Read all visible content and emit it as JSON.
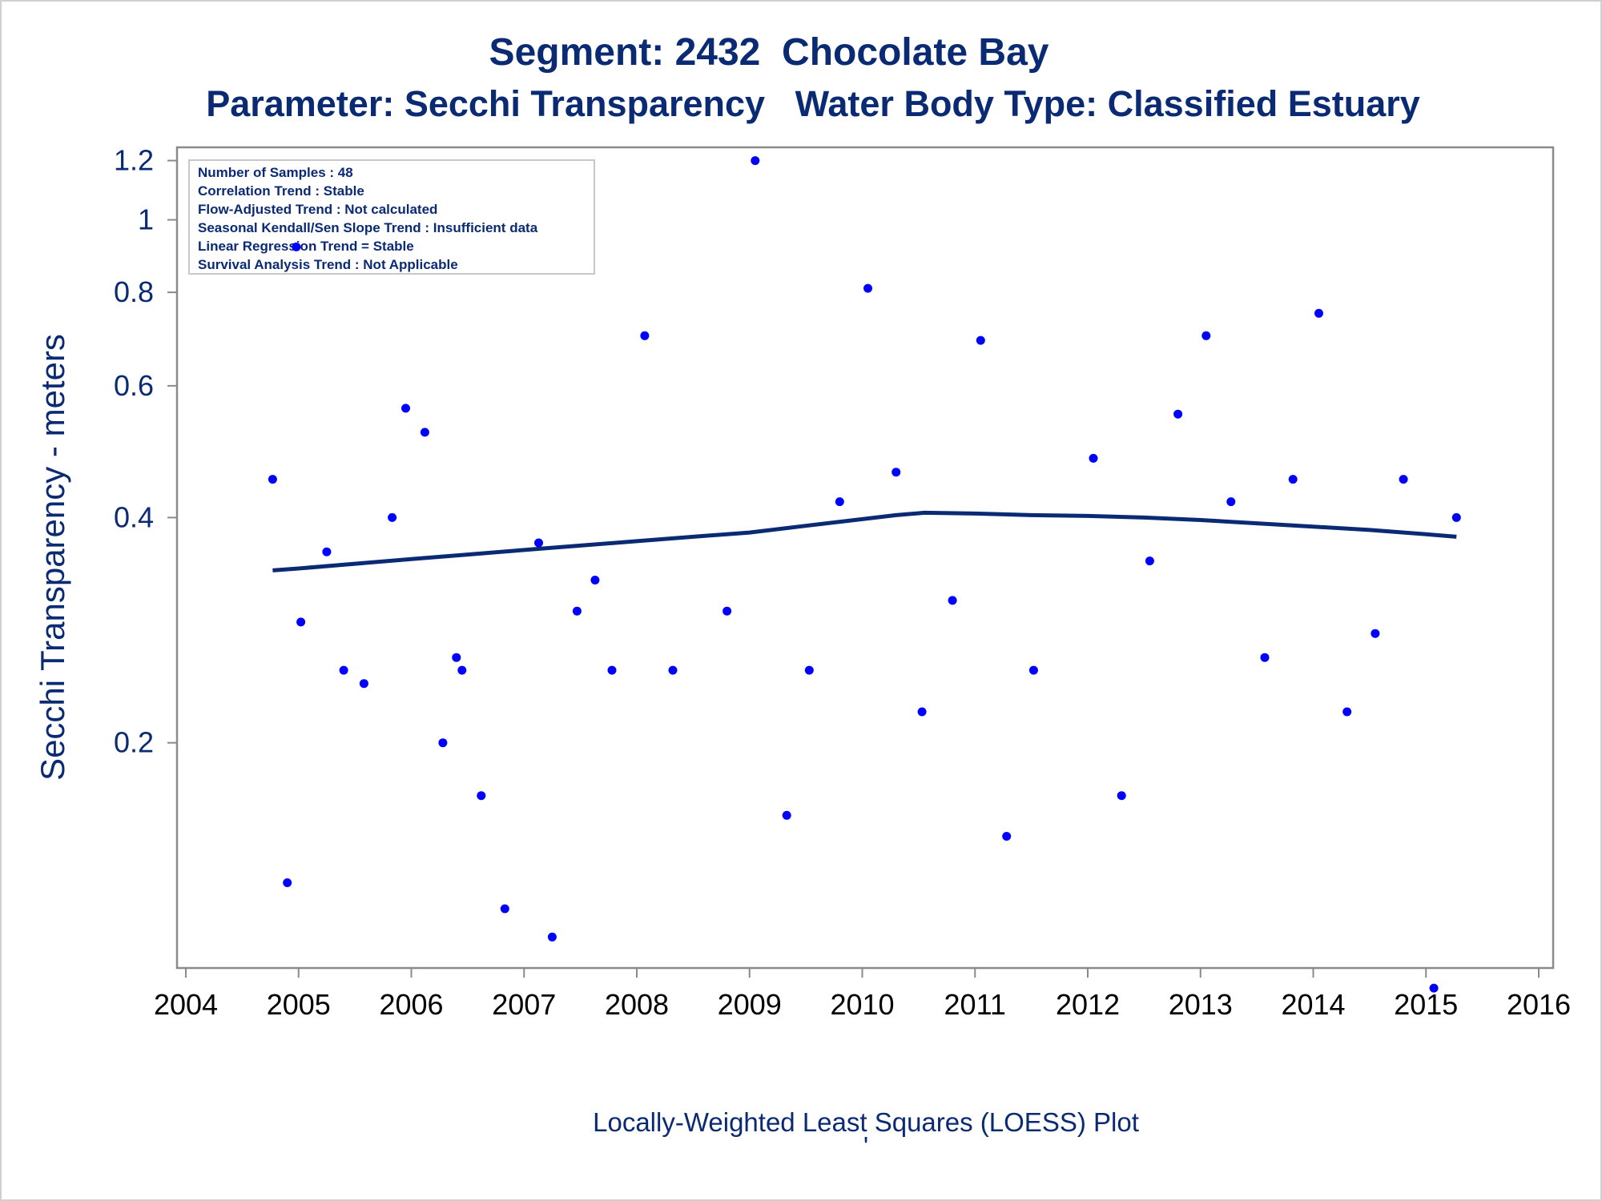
{
  "chart_data": {
    "type": "scatter",
    "title": "Segment: 2432  Chocolate Bay",
    "subtitle": "Parameter: Secchi Transparency   Water Body Type: Classified Estuary",
    "ylabel": "Secchi Transparency - meters",
    "xlabel": "",
    "footer": "Locally-Weighted Least Squares (LOESS) Plot",
    "yscale": "log",
    "xlim": [
      2004,
      2016
    ],
    "ylim": [
      0.1,
      1.25
    ],
    "x_ticks": [
      "2004",
      "2005",
      "2006",
      "2007",
      "2008",
      "2009",
      "2010",
      "2011",
      "2012",
      "2013",
      "2014",
      "2015",
      "2016"
    ],
    "y_ticks": [
      0.2,
      0.4,
      0.6,
      0.8,
      1,
      1.2
    ],
    "y_tick_labels": [
      "0.2",
      "0.4",
      "0.6",
      "0.8",
      "1",
      "1.2"
    ],
    "stats_box": [
      "Number of Samples : 48",
      "Correlation Trend : Stable",
      "Flow-Adjusted Trend : Not calculated",
      "Seasonal Kendall/Sen Slope Trend : Insufficient data",
      "Linear Regression Trend = Stable",
      "Survival Analysis Trend : Not Applicable"
    ],
    "grid": false,
    "series": [
      {
        "type": "scatter",
        "color": "#0000ff",
        "points": [
          [
            2004.77,
            0.45
          ],
          [
            2004.9,
            0.13
          ],
          [
            2004.98,
            0.92
          ],
          [
            2005.02,
            0.29
          ],
          [
            2005.25,
            0.36
          ],
          [
            2005.4,
            0.25
          ],
          [
            2005.58,
            0.24
          ],
          [
            2005.83,
            0.4
          ],
          [
            2005.95,
            0.56
          ],
          [
            2006.12,
            0.52
          ],
          [
            2006.28,
            0.2
          ],
          [
            2006.4,
            0.26
          ],
          [
            2006.45,
            0.25
          ],
          [
            2006.62,
            0.17
          ],
          [
            2006.83,
            0.12
          ],
          [
            2007.13,
            0.37
          ],
          [
            2007.25,
            0.11
          ],
          [
            2007.47,
            0.3
          ],
          [
            2007.63,
            0.33
          ],
          [
            2007.78,
            0.25
          ],
          [
            2008.07,
            0.7
          ],
          [
            2008.32,
            0.25
          ],
          [
            2008.8,
            0.3
          ],
          [
            2009.05,
            1.2
          ],
          [
            2009.33,
            0.16
          ],
          [
            2009.53,
            0.25
          ],
          [
            2009.8,
            0.42
          ],
          [
            2010.05,
            0.81
          ],
          [
            2010.3,
            0.46
          ],
          [
            2010.53,
            0.22
          ],
          [
            2010.8,
            0.31
          ],
          [
            2011.05,
            0.69
          ],
          [
            2011.28,
            0.15
          ],
          [
            2011.52,
            0.25
          ],
          [
            2012.05,
            0.48
          ],
          [
            2012.3,
            0.17
          ],
          [
            2012.55,
            0.35
          ],
          [
            2012.8,
            0.55
          ],
          [
            2013.05,
            0.7
          ],
          [
            2013.27,
            0.42
          ],
          [
            2013.57,
            0.26
          ],
          [
            2013.82,
            0.45
          ],
          [
            2014.05,
            0.75
          ],
          [
            2014.3,
            0.22
          ],
          [
            2014.55,
            0.28
          ],
          [
            2014.8,
            0.45
          ],
          [
            2015.07,
            0.094
          ],
          [
            2015.27,
            0.4
          ]
        ]
      },
      {
        "type": "line",
        "color": "#0b2a74",
        "points": [
          [
            2004.77,
            0.34
          ],
          [
            2005.0,
            0.342
          ],
          [
            2005.5,
            0.347
          ],
          [
            2006.0,
            0.352
          ],
          [
            2006.5,
            0.357
          ],
          [
            2007.0,
            0.362
          ],
          [
            2007.5,
            0.367
          ],
          [
            2008.0,
            0.372
          ],
          [
            2008.5,
            0.377
          ],
          [
            2009.0,
            0.382
          ],
          [
            2009.5,
            0.39
          ],
          [
            2010.0,
            0.398
          ],
          [
            2010.3,
            0.403
          ],
          [
            2010.55,
            0.406
          ],
          [
            2011.0,
            0.405
          ],
          [
            2011.5,
            0.403
          ],
          [
            2012.0,
            0.402
          ],
          [
            2012.5,
            0.4
          ],
          [
            2013.0,
            0.397
          ],
          [
            2013.5,
            0.393
          ],
          [
            2014.0,
            0.389
          ],
          [
            2014.5,
            0.385
          ],
          [
            2015.0,
            0.38
          ],
          [
            2015.27,
            0.377
          ]
        ]
      }
    ]
  }
}
